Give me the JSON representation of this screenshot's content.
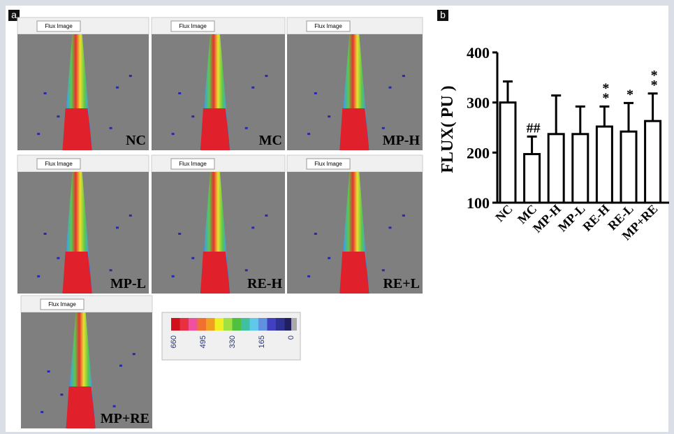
{
  "panel_a": {
    "label": "a",
    "tiles": [
      {
        "button": "Flux Image",
        "name": "NC"
      },
      {
        "button": "Flux Image",
        "name": "MC"
      },
      {
        "button": "Flux Image",
        "name": "MP-H"
      },
      {
        "button": "Flux Image",
        "name": "MP-L"
      },
      {
        "button": "Flux Image",
        "name": "RE-H"
      },
      {
        "button": "Flux Image",
        "name": "RE+L"
      },
      {
        "button": "Flux Image",
        "name": "MP+RE"
      }
    ],
    "colorbar_ticks": [
      660,
      495,
      330,
      165,
      0
    ]
  },
  "chart_data": {
    "type": "bar",
    "panel_label": "b",
    "ylabel": "FLUX( PU )",
    "categories": [
      "NC",
      "MC",
      "MP-H",
      "MP-L",
      "RE-H",
      "RE-L",
      "MP+RE"
    ],
    "values": [
      300,
      197,
      237,
      237,
      252,
      242,
      263
    ],
    "errors": [
      42,
      35,
      77,
      55,
      40,
      57,
      55
    ],
    "annotations": [
      null,
      [
        "##"
      ],
      null,
      null,
      [
        "*",
        "*"
      ],
      [
        "*"
      ],
      [
        "*",
        "*"
      ]
    ],
    "color": "#ffffff",
    "ylim": [
      100,
      400
    ],
    "yticks": [
      100,
      200,
      300,
      400
    ]
  }
}
